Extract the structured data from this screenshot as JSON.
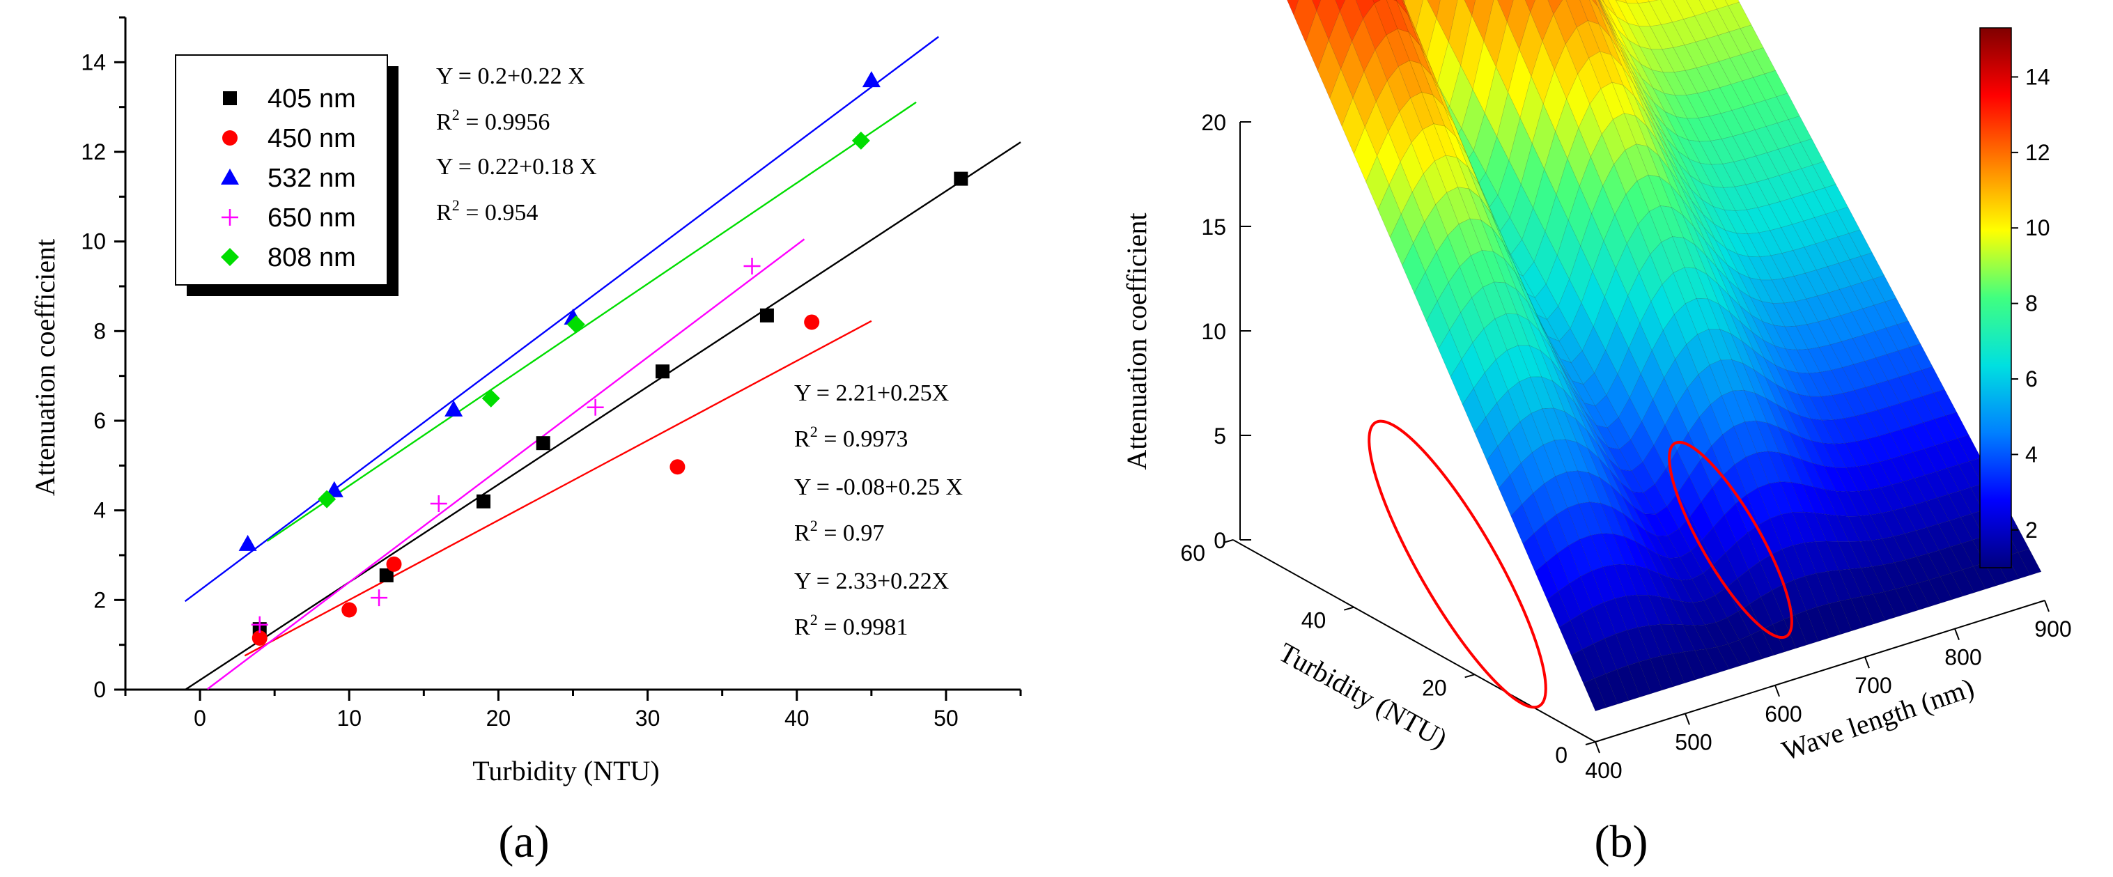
{
  "panel_labels": {
    "a": "(a)",
    "b": "(b)"
  },
  "chart_data": [
    {
      "type": "scatter",
      "xlabel": "Turbidity (NTU)",
      "ylabel": "Attenuation coefficient",
      "xlim": [
        -5,
        55
      ],
      "ylim": [
        0,
        15
      ],
      "xticks": [
        "0",
        "10",
        "20",
        "30",
        "40",
        "50"
      ],
      "yticks": [
        "0",
        "2",
        "4",
        "6",
        "8",
        "10",
        "12",
        "14"
      ],
      "legend_position": "top-left",
      "series": [
        {
          "name": "405 nm",
          "marker": "square",
          "color": "#000000",
          "points": [
            [
              4,
              1.35
            ],
            [
              12.5,
              2.55
            ],
            [
              19,
              4.2
            ],
            [
              23,
              5.5
            ],
            [
              31,
              7.1
            ],
            [
              38,
              8.35
            ],
            [
              51,
              11.4
            ]
          ],
          "fit": {
            "x": [
              -1,
              55
            ]
          }
        },
        {
          "name": "450 nm",
          "marker": "circle",
          "color": "#ff0000",
          "points": [
            [
              4,
              1.15
            ],
            [
              10,
              1.78
            ],
            [
              13,
              2.8
            ],
            [
              32,
              4.97
            ],
            [
              41,
              8.2
            ]
          ],
          "fit": {
            "x": [
              3,
              45
            ]
          }
        },
        {
          "name": "532 nm",
          "marker": "triangle",
          "color": "#0000ff",
          "points": [
            [
              3.2,
              3.25
            ],
            [
              9,
              4.45
            ],
            [
              17,
              6.25
            ],
            [
              25,
              8.3
            ],
            [
              45,
              13.6
            ]
          ],
          "fit": {
            "x": [
              -1,
              49.5
            ]
          }
        },
        {
          "name": "650 nm",
          "marker": "plus",
          "color": "#ff00ff",
          "points": [
            [
              4,
              1.45
            ],
            [
              12,
              2.05
            ],
            [
              16,
              4.15
            ],
            [
              26.5,
              6.3
            ],
            [
              37,
              9.45
            ]
          ],
          "fit": {
            "x": [
              0.5,
              40.5
            ]
          }
        },
        {
          "name": "808 nm",
          "marker": "diamond",
          "color": "#00dd00",
          "points": [
            [
              8.5,
              4.25
            ],
            [
              19.5,
              6.5
            ],
            [
              25.2,
              8.15
            ],
            [
              44.3,
              12.25
            ]
          ],
          "fit": {
            "x": [
              4.5,
              48
            ]
          }
        }
      ],
      "annotations": [
        {
          "eq": "Y = 0.2+0.22 X",
          "r2": "R",
          "r2val": " = 0.9956"
        },
        {
          "eq": "Y = 0.22+0.18 X",
          "r2": "R",
          "r2val": " = 0.954"
        },
        {
          "eq": "Y = 2.21+0.25X",
          "r2": "R",
          "r2val": " = 0.9973"
        },
        {
          "eq": "Y = -0.08+0.25 X",
          "r2": "R",
          "r2val": " = 0.97"
        },
        {
          "eq": "Y = 2.33+0.22X",
          "r2": "R",
          "r2val": " = 0.9981"
        }
      ],
      "superscript": "2"
    },
    {
      "type": "heatmap",
      "xlabel": "Wave length (nm)",
      "ylabel": "Turbidity (NTU)",
      "zlabel": "Attenuation coefficient",
      "x_ticks": [
        "400",
        "500",
        "600",
        "700",
        "800",
        "900"
      ],
      "y_ticks": [
        "0",
        "20",
        "40",
        "60"
      ],
      "z_ticks": [
        "0",
        "5",
        "10",
        "15",
        "20"
      ],
      "colorbar_ticks": [
        "2",
        "4",
        "6",
        "8",
        "10",
        "12",
        "14"
      ],
      "colorbar_range": [
        1,
        15.3
      ],
      "colormap": [
        "#00007f",
        "#0000ff",
        "#0080ff",
        "#00e0e0",
        "#40ff80",
        "#ffff00",
        "#ff8000",
        "#ff0000",
        "#800000"
      ],
      "highlight_color": "#ff0000"
    }
  ]
}
